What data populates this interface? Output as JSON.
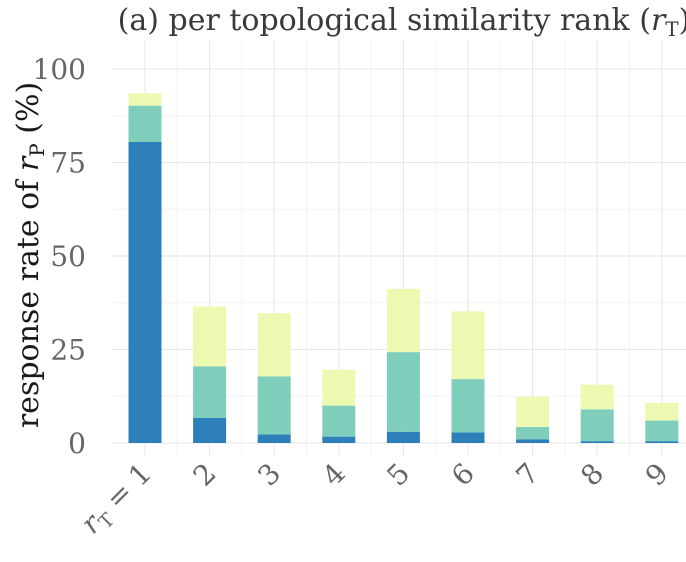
{
  "chart_data": {
    "type": "bar",
    "stacked": true,
    "title": "(a) per topological similarity rank (",
    "title_symbol": "r",
    "title_sub": "T",
    "title_close": ")",
    "ylabel": "response rate of ",
    "ylabel_symbol": "r",
    "ylabel_sub": "P",
    "ylabel_unit": " (%)",
    "categories": [
      "rT = 1",
      "2",
      "3",
      "4",
      "5",
      "6",
      "7",
      "8",
      "9"
    ],
    "first_category": {
      "symbol": "r",
      "sub": "T",
      "rest": " = 1"
    },
    "yticks": [
      "0",
      "25",
      "50",
      "75",
      "100"
    ],
    "ylim": [
      0,
      105
    ],
    "grid": true,
    "series": [
      {
        "color": "#2c7fb8",
        "values": [
          80.5,
          6.7,
          2.3,
          1.7,
          3.0,
          2.8,
          1.0,
          0.5,
          0.5
        ]
      },
      {
        "color": "#7fcdbb",
        "values": [
          9.7,
          13.8,
          15.5,
          8.3,
          21.3,
          14.3,
          3.3,
          8.5,
          5.5
        ]
      },
      {
        "color": "#edf8b1",
        "values": [
          3.3,
          16.0,
          16.9,
          9.6,
          16.9,
          18.1,
          8.1,
          6.6,
          4.7
        ]
      }
    ]
  }
}
